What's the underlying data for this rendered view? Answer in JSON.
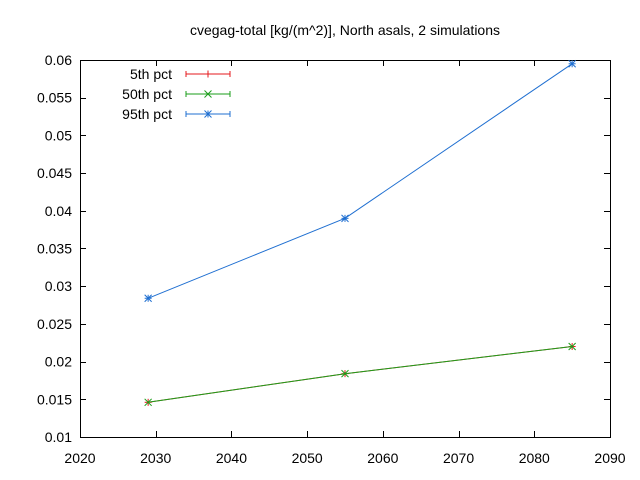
{
  "chart_data": {
    "type": "line",
    "title": "cvegag-total [kg/(m^2)], North asals, 2 simulations",
    "xlabel": "",
    "ylabel": "",
    "xlim": [
      2020,
      2090
    ],
    "ylim": [
      0.01,
      0.06
    ],
    "x_ticks": [
      2020,
      2030,
      2040,
      2050,
      2060,
      2070,
      2080,
      2090
    ],
    "y_ticks": [
      0.01,
      0.015,
      0.02,
      0.025,
      0.03,
      0.035,
      0.04,
      0.045,
      0.05,
      0.055,
      0.06
    ],
    "y_tick_labels": [
      "0.01",
      "0.015",
      "0.02",
      "0.025",
      "0.03",
      "0.035",
      "0.04",
      "0.045",
      "0.05",
      "0.055",
      "0.06"
    ],
    "grid": false,
    "legend_position": "top-left",
    "x": [
      2029,
      2055,
      2085
    ],
    "series": [
      {
        "name": "5th pct",
        "color": "#e41a1c",
        "marker": "plus",
        "values": [
          0.0146,
          0.0184,
          0.022
        ]
      },
      {
        "name": "50th pct",
        "color": "#1a9e1a",
        "marker": "cross",
        "values": [
          0.0146,
          0.0184,
          0.022
        ]
      },
      {
        "name": "95th pct",
        "color": "#1f6fd1",
        "marker": "star",
        "values": [
          0.0284,
          0.039,
          0.0595
        ]
      }
    ]
  }
}
